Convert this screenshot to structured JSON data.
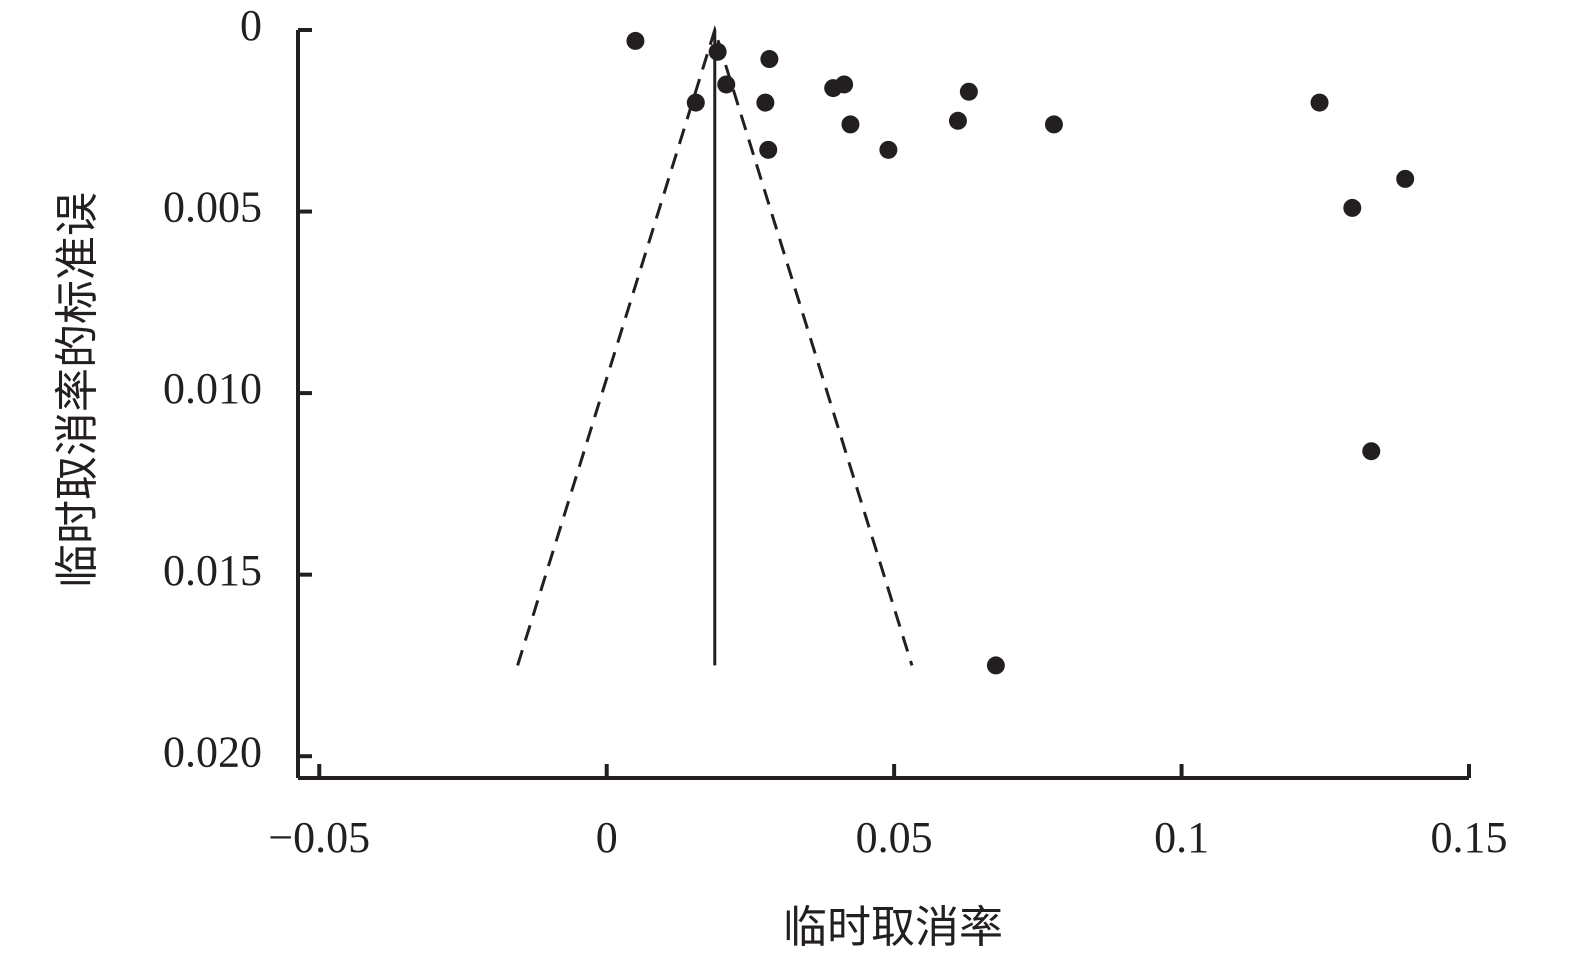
{
  "chart_data": {
    "type": "scatter",
    "x_label": "临时取消率",
    "y_label": "临时取消率的标准误",
    "x": [
      0.005,
      0.0193,
      0.0283,
      0.0208,
      0.0155,
      0.0276,
      0.0281,
      0.0394,
      0.0413,
      0.0424,
      0.049,
      0.0611,
      0.063,
      0.0778,
      0.124,
      0.1297,
      0.1389,
      0.133,
      0.0677
    ],
    "values": [
      0.0003,
      0.0006,
      0.0008,
      0.0015,
      0.002,
      0.002,
      0.0033,
      0.0016,
      0.0015,
      0.0026,
      0.0033,
      0.0025,
      0.0017,
      0.0026,
      0.002,
      0.0049,
      0.0041,
      0.0116,
      0.0175
    ],
    "color": "#231f20",
    "lines": [
      {
        "x": [
          -0.0155,
          0.0188,
          0.0531
        ],
        "y": [
          0.0175,
          0,
          0.0175
        ],
        "dashed": true
      },
      {
        "x": [
          0.0188,
          0.0188
        ],
        "y": [
          0,
          0.0175
        ],
        "dashed": false
      }
    ],
    "xlim": [
      -0.0537,
      0.15
    ],
    "xticks": [
      {
        "value": -0.05,
        "label": "−0.05"
      },
      0,
      0.05,
      0.1,
      0.15
    ],
    "ylim": [
      0,
      0.0206
    ],
    "y_inverted": true,
    "yticks": [
      0,
      0.005,
      {
        "value": 0.01,
        "label": "0.010"
      },
      0.015,
      {
        "value": 0.02,
        "label": "0.020"
      }
    ]
  }
}
